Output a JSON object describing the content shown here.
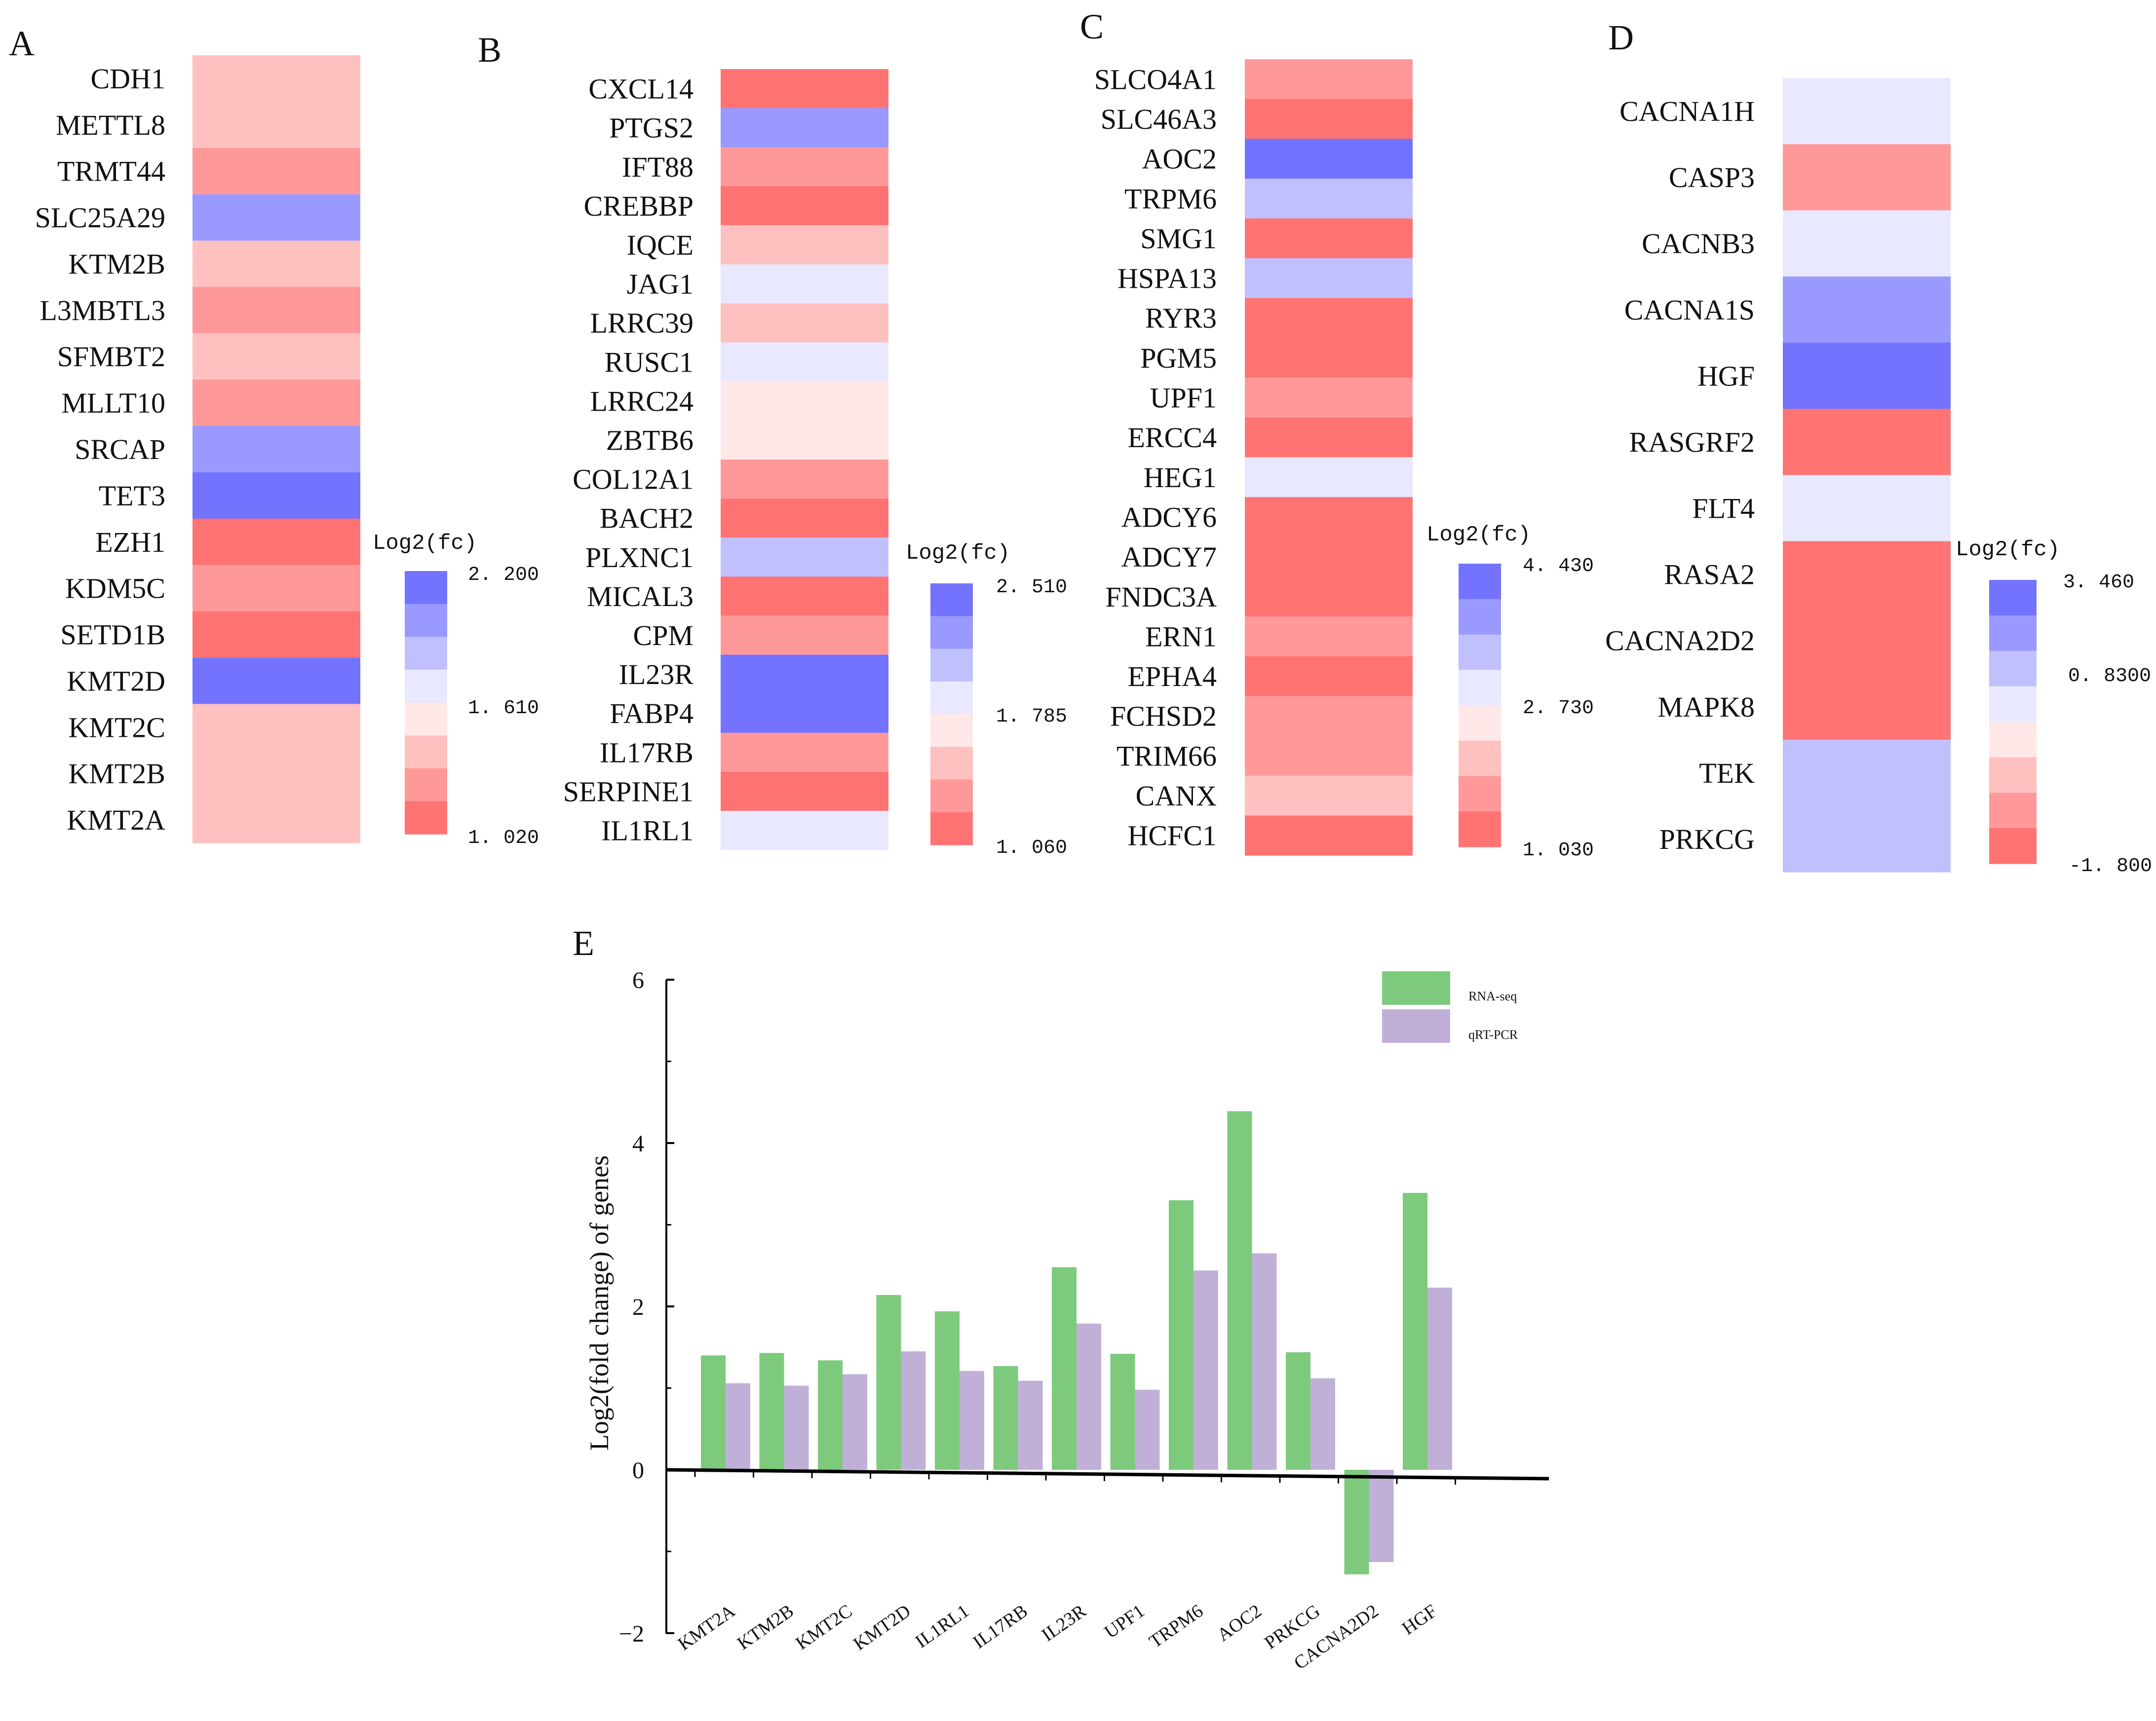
{
  "colors": {
    "scale": [
      "#FF7373",
      "#FF9999",
      "#FFC0C0",
      "#FFE8E8",
      "#E8E8FF",
      "#C0C0FF",
      "#9999FF",
      "#7373FF"
    ],
    "rna_seq": "#7DCA7D",
    "qrt_pcr": "#C0B0D8",
    "axis": "#000000"
  },
  "chart_data": [
    {
      "type": "heatmap",
      "panel": "A",
      "genes": [
        "CDH1",
        "METTL8",
        "TRMT44",
        "SLC25A29",
        "KTM2B",
        "L3MBTL3",
        "SFMBT2",
        "MLLT10",
        "SRCAP",
        "TET3",
        "EZH1",
        "KDM5C",
        "SETD1B",
        "KMT2D",
        "KMT2C",
        "KMT2B",
        "KMT2A"
      ],
      "color_levels": [
        2,
        2,
        1,
        6,
        2,
        1,
        2,
        1,
        6,
        7,
        0,
        1,
        0,
        7,
        2,
        2,
        2
      ],
      "legend": {
        "title": "Log2(fc)",
        "top_label": "2. 200",
        "mid_label": "1. 610",
        "bottom_label": "1. 020"
      }
    },
    {
      "type": "heatmap",
      "panel": "B",
      "genes": [
        "CXCL14",
        "PTGS2",
        "IFT88",
        "CREBBP",
        "IQCE",
        "JAG1",
        "LRRC39",
        "RUSC1",
        "LRRC24",
        "ZBTB6",
        "COL12A1",
        "BACH2",
        "PLXNC1",
        "MICAL3",
        "CPM",
        "IL23R",
        "FABP4",
        "IL17RB",
        "SERPINE1",
        "IL1RL1"
      ],
      "color_levels": [
        0,
        6,
        1,
        0,
        2,
        4,
        2,
        4,
        3,
        3,
        1,
        0,
        5,
        0,
        1,
        7,
        7,
        1,
        0,
        4
      ],
      "legend": {
        "title": "Log2(fc)",
        "top_label": "2. 510",
        "mid_label": "1. 785",
        "bottom_label": "1. 060"
      }
    },
    {
      "type": "heatmap",
      "panel": "C",
      "genes": [
        "SLCO4A1",
        "SLC46A3",
        "AOC2",
        "TRPM6",
        "SMG1",
        "HSPA13",
        "RYR3",
        "PGM5",
        "UPF1",
        "ERCC4",
        "HEG1",
        "ADCY6",
        "ADCY7",
        "FNDC3A",
        "ERN1",
        "EPHA4",
        "FCHSD2",
        "TRIM66",
        "CANX",
        "HCFC1"
      ],
      "color_levels": [
        1,
        0,
        7,
        5,
        0,
        5,
        0,
        0,
        1,
        0,
        4,
        0,
        0,
        0,
        1,
        0,
        1,
        1,
        2,
        0
      ],
      "legend": {
        "title": "Log2(fc)",
        "top_label": "4. 430",
        "mid_label": "2. 730",
        "bottom_label": "1. 030"
      }
    },
    {
      "type": "heatmap",
      "panel": "D",
      "genes": [
        "CACNA1H",
        "CASP3",
        "CACNB3",
        "CACNA1S",
        "HGF",
        "RASGRF2",
        "FLT4",
        "RASA2",
        "CACNA2D2",
        "MAPK8",
        "TEK",
        "PRKCG"
      ],
      "color_levels": [
        4,
        1,
        4,
        6,
        7,
        0,
        4,
        0,
        0,
        0,
        5,
        5
      ],
      "legend": {
        "title": "Log2(fc)",
        "top_label": "3. 460",
        "mid_label": "0. 8300",
        "bottom_label": "-1. 800"
      }
    },
    {
      "type": "bar",
      "panel": "E",
      "categories": [
        "KMT2A",
        "KTM2B",
        "KMT2C",
        "KMT2D",
        "IL1RL1",
        "IL17RB",
        "IL23R",
        "UPF1",
        "TRPM6",
        "AOC2",
        "PRKCG",
        "CACNA2D2",
        "HGF"
      ],
      "series": [
        {
          "name": "RNA-seq",
          "values": [
            1.4,
            1.43,
            1.34,
            2.14,
            1.94,
            1.27,
            2.48,
            1.42,
            3.3,
            4.39,
            1.44,
            -1.28,
            3.39
          ]
        },
        {
          "name": "qRT-PCR",
          "values": [
            1.06,
            1.03,
            1.17,
            1.45,
            1.21,
            1.09,
            1.79,
            0.98,
            2.44,
            2.65,
            1.12,
            -1.13,
            2.23
          ]
        }
      ],
      "ylabel": "Log2(fold change) of genes",
      "xlabel": "",
      "ylim": [
        -2,
        6
      ],
      "yticks": [
        "6",
        "4",
        "2",
        "0",
        "−2"
      ],
      "ytick_values": [
        6,
        4,
        2,
        0,
        -2
      ],
      "legend": "top-right"
    }
  ]
}
